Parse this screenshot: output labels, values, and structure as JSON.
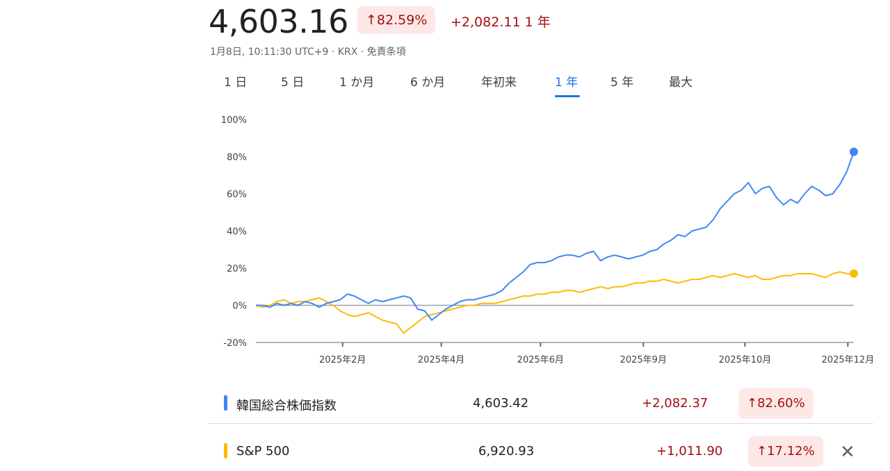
{
  "header": {
    "price": "4,603.16",
    "pct_change": "↑82.59%",
    "abs_change": "+2,082.11 1 年",
    "meta": "1月8日, 10:11:30 UTC+9 · KRX · 免責条項"
  },
  "tabs": [
    {
      "label": "1 日"
    },
    {
      "label": "5 日"
    },
    {
      "label": "1 か月"
    },
    {
      "label": "6 か月"
    },
    {
      "label": "年初来"
    },
    {
      "label": "1 年",
      "active": true
    },
    {
      "label": "5 年"
    },
    {
      "label": "最大"
    }
  ],
  "chart_data": {
    "type": "line",
    "x_ticks": [
      "2025年2月",
      "2025年4月",
      "2025年6月",
      "2025年9月",
      "2025年10月",
      "2025年12月"
    ],
    "y_ticks": [
      "100%",
      "80%",
      "60%",
      "40%",
      "20%",
      "0%",
      "-20%"
    ],
    "ylim": [
      -20,
      100
    ],
    "grid": false,
    "series": [
      {
        "name": "韓国総合株価指数",
        "color": "#4285f4",
        "values": [
          0,
          0,
          -1,
          1,
          0,
          1,
          0,
          2,
          1,
          -1,
          1,
          2,
          3,
          6,
          5,
          3,
          1,
          3,
          2,
          3,
          4,
          5,
          4,
          -2,
          -3,
          -8,
          -5,
          -2,
          0,
          2,
          3,
          3,
          4,
          5,
          6,
          8,
          12,
          15,
          18,
          22,
          23,
          23,
          24,
          26,
          27,
          27,
          26,
          28,
          29,
          24,
          26,
          27,
          26,
          25,
          26,
          27,
          29,
          30,
          33,
          35,
          38,
          37,
          40,
          41,
          42,
          46,
          52,
          56,
          60,
          62,
          66,
          60,
          63,
          64,
          58,
          54,
          57,
          55,
          60,
          64,
          62,
          59,
          60,
          65,
          72,
          82.6
        ]
      },
      {
        "name": "S&P 500",
        "color": "#fbbc04",
        "values": [
          0,
          -1,
          0,
          2,
          3,
          1,
          2,
          2,
          3,
          4,
          2,
          0,
          -3,
          -5,
          -6,
          -5,
          -4,
          -6,
          -8,
          -9,
          -10,
          -15,
          -12,
          -9,
          -6,
          -5,
          -4,
          -3,
          -2,
          -1,
          0,
          0,
          1,
          1,
          1,
          2,
          3,
          4,
          5,
          5,
          6,
          6,
          7,
          7,
          8,
          8,
          7,
          8,
          9,
          10,
          9,
          10,
          10,
          11,
          12,
          12,
          13,
          13,
          14,
          13,
          12,
          13,
          14,
          14,
          15,
          16,
          15,
          16,
          17,
          16,
          15,
          16,
          14,
          14,
          15,
          16,
          16,
          17,
          17,
          17,
          16,
          15,
          17,
          18,
          17,
          17.1
        ]
      }
    ]
  },
  "legend": [
    {
      "name": "韓国総合株価指数",
      "value": "4,603.42",
      "change": "+2,082.37",
      "pct": "↑82.60%",
      "color": "#4285f4"
    },
    {
      "name": "S&P 500",
      "value": "6,920.93",
      "change": "+1,011.90",
      "pct": "↑17.12%",
      "color": "#fbbc04",
      "close_icon": "✕"
    }
  ]
}
